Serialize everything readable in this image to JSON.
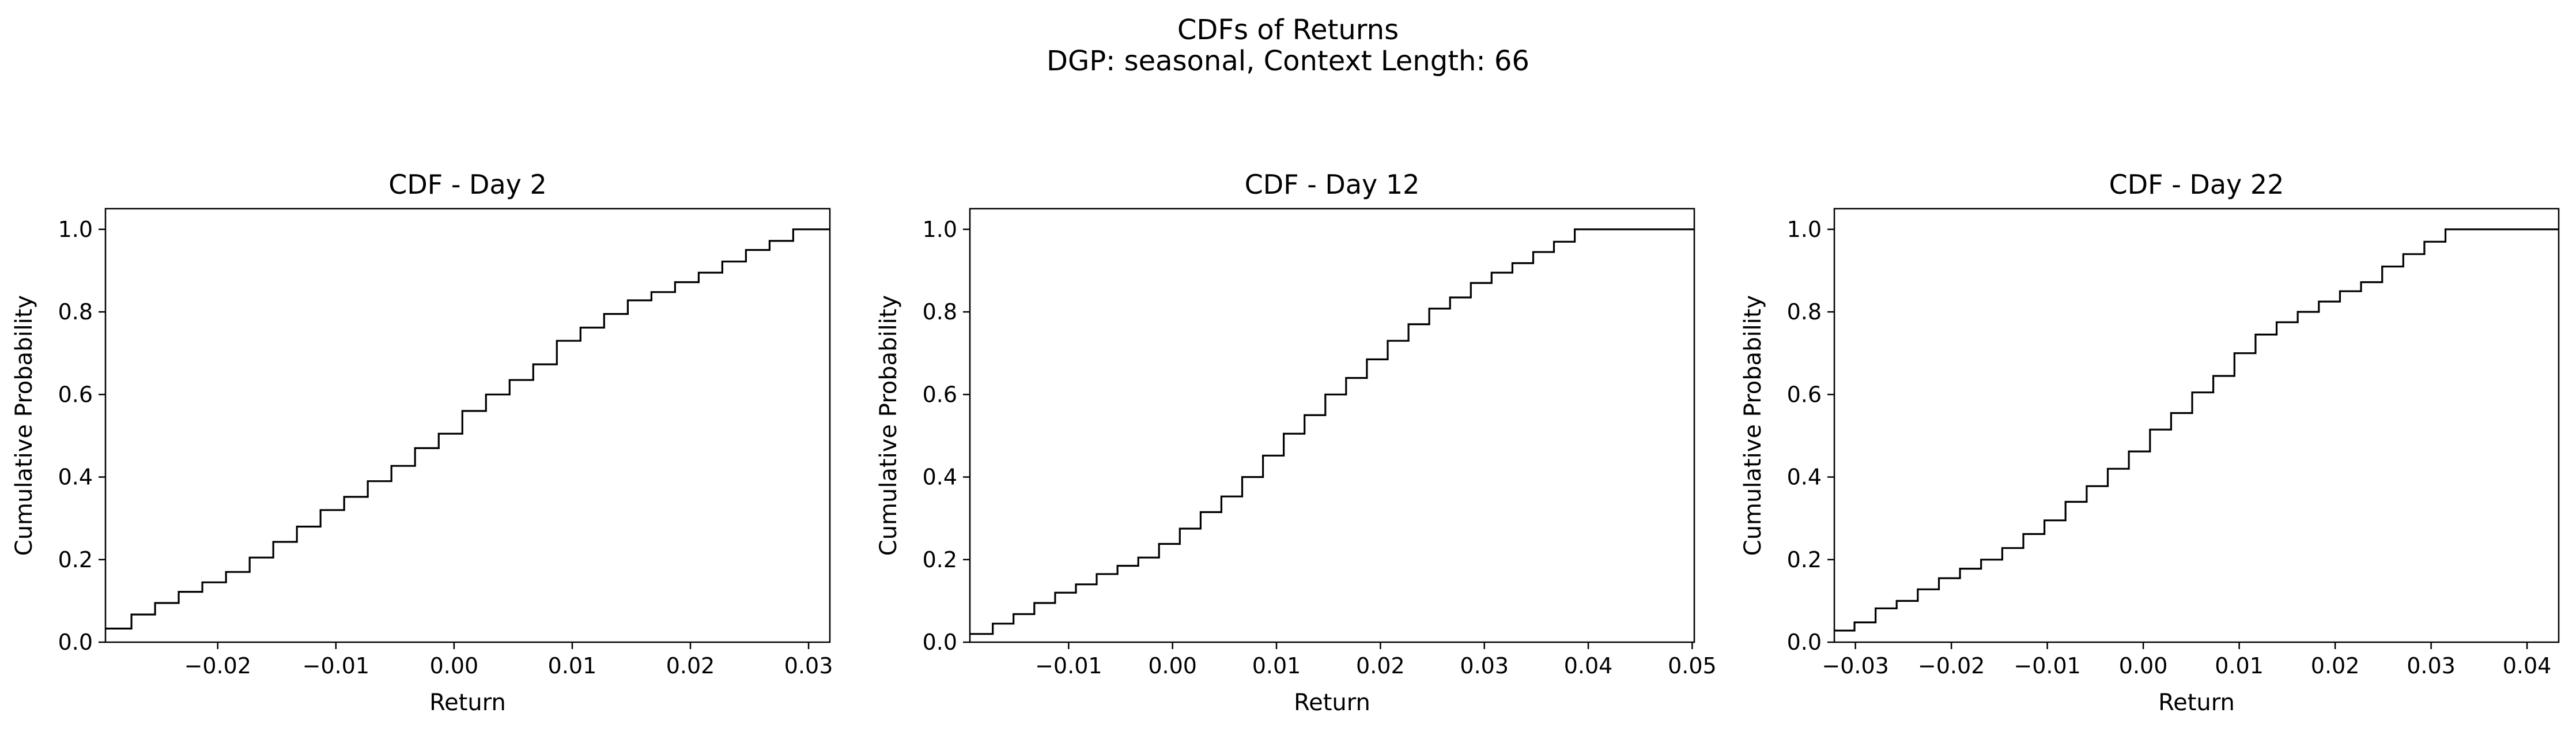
{
  "figure": {
    "title_line1": "CDFs of Returns",
    "title_line2": "DGP: seasonal, Context Length: 66"
  },
  "chart_data": [
    {
      "type": "line",
      "step": true,
      "title": "CDF - Day 2",
      "xlabel": "Return",
      "ylabel": "Cumulative Probability",
      "xlim": [
        -0.0295,
        0.0318
      ],
      "ylim": [
        0.0,
        1.05
      ],
      "xticks": [
        -0.02,
        -0.01,
        0.0,
        0.01,
        0.02,
        0.03
      ],
      "xtick_labels": [
        "−0.02",
        "−0.01",
        "0.00",
        "0.01",
        "0.02",
        "0.03"
      ],
      "yticks": [
        0.0,
        0.2,
        0.4,
        0.6,
        0.8,
        1.0
      ],
      "ytick_labels": [
        "0.0",
        "0.2",
        "0.4",
        "0.6",
        "0.8",
        "1.0"
      ],
      "grid": false,
      "line_color": "#000000",
      "series": [
        {
          "x": [
            -0.0295,
            -0.0273,
            -0.0253,
            -0.0233,
            -0.0213,
            -0.0193,
            -0.0173,
            -0.0153,
            -0.0133,
            -0.0113,
            -0.0093,
            -0.0073,
            -0.0053,
            -0.0033,
            -0.0013,
            0.0007,
            0.0027,
            0.0047,
            0.0067,
            0.0087,
            0.0107,
            0.0127,
            0.0147,
            0.0167,
            0.0187,
            0.0207,
            0.0227,
            0.0247,
            0.0267,
            0.0287,
            0.0307,
            0.0318
          ],
          "y": [
            0.033,
            0.067,
            0.095,
            0.122,
            0.145,
            0.17,
            0.205,
            0.243,
            0.28,
            0.32,
            0.352,
            0.39,
            0.427,
            0.47,
            0.505,
            0.56,
            0.6,
            0.635,
            0.673,
            0.73,
            0.762,
            0.795,
            0.828,
            0.848,
            0.872,
            0.895,
            0.922,
            0.95,
            0.972,
            1.0,
            1.0,
            1.0
          ]
        }
      ]
    },
    {
      "type": "line",
      "step": true,
      "title": "CDF - Day 12",
      "xlabel": "Return",
      "ylabel": "Cumulative Probability",
      "xlim": [
        -0.0195,
        0.0502
      ],
      "ylim": [
        0.0,
        1.05
      ],
      "xticks": [
        -0.01,
        0.0,
        0.01,
        0.02,
        0.03,
        0.04,
        0.05
      ],
      "xtick_labels": [
        "−0.01",
        "0.00",
        "0.01",
        "0.02",
        "0.03",
        "0.04",
        "0.05"
      ],
      "yticks": [
        0.0,
        0.2,
        0.4,
        0.6,
        0.8,
        1.0
      ],
      "ytick_labels": [
        "0.0",
        "0.2",
        "0.4",
        "0.6",
        "0.8",
        "1.0"
      ],
      "grid": false,
      "line_color": "#000000",
      "series": [
        {
          "x": [
            -0.0195,
            -0.0173,
            -0.0153,
            -0.0133,
            -0.0113,
            -0.0093,
            -0.0073,
            -0.0053,
            -0.0033,
            -0.0013,
            0.0007,
            0.0027,
            0.0047,
            0.0067,
            0.0087,
            0.0107,
            0.0127,
            0.0147,
            0.0167,
            0.0187,
            0.0207,
            0.0227,
            0.0247,
            0.0267,
            0.0287,
            0.0307,
            0.0327,
            0.0347,
            0.0367,
            0.0387,
            0.0407,
            0.0427,
            0.0447,
            0.0467,
            0.0487,
            0.0502
          ],
          "y": [
            0.02,
            0.045,
            0.068,
            0.095,
            0.12,
            0.14,
            0.165,
            0.185,
            0.205,
            0.238,
            0.275,
            0.315,
            0.353,
            0.4,
            0.452,
            0.505,
            0.55,
            0.6,
            0.64,
            0.685,
            0.73,
            0.77,
            0.808,
            0.835,
            0.87,
            0.895,
            0.918,
            0.945,
            0.97,
            1.0,
            1.0,
            1.0,
            1.0,
            1.0,
            1.0,
            1.0
          ]
        }
      ]
    },
    {
      "type": "line",
      "step": true,
      "title": "CDF - Day 22",
      "xlabel": "Return",
      "ylabel": "Cumulative Probability",
      "xlim": [
        -0.0322,
        0.0433
      ],
      "ylim": [
        0.0,
        1.05
      ],
      "xticks": [
        -0.03,
        -0.02,
        -0.01,
        0.0,
        0.01,
        0.02,
        0.03,
        0.04
      ],
      "xtick_labels": [
        "−0.03",
        "−0.02",
        "−0.01",
        "0.00",
        "0.01",
        "0.02",
        "0.03",
        "0.04"
      ],
      "yticks": [
        0.0,
        0.2,
        0.4,
        0.6,
        0.8,
        1.0
      ],
      "ytick_labels": [
        "0.0",
        "0.2",
        "0.4",
        "0.6",
        "0.8",
        "1.0"
      ],
      "grid": false,
      "line_color": "#000000",
      "series": [
        {
          "x": [
            -0.0322,
            -0.0301,
            -0.0279,
            -0.0257,
            -0.0235,
            -0.0213,
            -0.0191,
            -0.0169,
            -0.0147,
            -0.0125,
            -0.0103,
            -0.0081,
            -0.0059,
            -0.0037,
            -0.0015,
            0.0007,
            0.0029,
            0.0051,
            0.0073,
            0.0095,
            0.0117,
            0.0139,
            0.0161,
            0.0183,
            0.0205,
            0.0227,
            0.0249,
            0.0271,
            0.0293,
            0.0315,
            0.0337,
            0.0359,
            0.0381,
            0.0403,
            0.0425,
            0.0433
          ],
          "y": [
            0.028,
            0.048,
            0.082,
            0.1,
            0.128,
            0.155,
            0.178,
            0.2,
            0.228,
            0.262,
            0.295,
            0.34,
            0.378,
            0.42,
            0.462,
            0.515,
            0.555,
            0.605,
            0.645,
            0.7,
            0.745,
            0.775,
            0.8,
            0.825,
            0.85,
            0.872,
            0.91,
            0.94,
            0.97,
            1.0,
            1.0,
            1.0,
            1.0,
            1.0,
            1.0,
            1.0
          ]
        }
      ]
    }
  ]
}
